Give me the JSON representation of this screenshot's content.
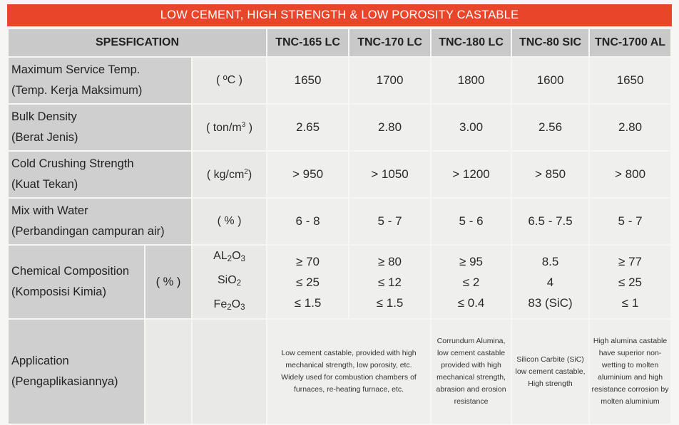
{
  "title": "LOW CEMENT, HIGH STRENGTH & LOW POROSITY CASTABLE",
  "header": {
    "spec": "SPESFICATION",
    "products": [
      "TNC-165 LC",
      "TNC-170 LC",
      "TNC-180 LC",
      "TNC-80 SIC",
      "TNC-1700 AL"
    ]
  },
  "rows": {
    "temp": {
      "label1": "Maximum Service Temp.",
      "label2": "(Temp. Kerja  Maksimum)",
      "unit": "( ºC )",
      "values": [
        "1650",
        "1700",
        "1800",
        "1600",
        "1650"
      ]
    },
    "density": {
      "label1": "Bulk Density",
      "label2": "(Berat Jenis)",
      "unit_a": "( ton/m",
      "unit_sup": "3",
      "unit_b": " )",
      "values": [
        "2.65",
        "2.80",
        "3.00",
        "2.56",
        "2.80"
      ]
    },
    "crushing": {
      "label1": "Cold Crushing Strength",
      "label2": "(Kuat Tekan)",
      "unit_a": "( kg/cm",
      "unit_sup": "2",
      "unit_b": ")",
      "values": [
        "> 950",
        "> 1050",
        "> 1200",
        "> 850",
        "> 800"
      ]
    },
    "water": {
      "label1": "Mix with Water",
      "label2": "(Perbandingan campuran air)",
      "unit": "( % )",
      "values": [
        "6 - 8",
        "5 - 7",
        "5 - 6",
        "6.5 - 7.5",
        "5 - 7"
      ]
    },
    "chemical": {
      "label1": "Chemical Composition",
      "label2": "(Komposisi Kimia)",
      "unit": "( % )",
      "compounds": [
        {
          "a": "AL",
          "s1": "2",
          "b": "O",
          "s2": "3"
        },
        {
          "a": "SiO",
          "s1": "2",
          "b": "",
          "s2": ""
        },
        {
          "a": "Fe",
          "s1": "2",
          "b": "O",
          "s2": "3"
        }
      ],
      "values": [
        [
          "≥ 70",
          "≤ 25",
          "≤ 1.5"
        ],
        [
          "≥ 80",
          "≤ 12",
          "≤ 1.5"
        ],
        [
          "≥ 95",
          "≤ 2",
          "≤ 0.4"
        ],
        [
          "8.5",
          "4",
          "83 (SiC)"
        ],
        [
          "≥ 77",
          "≤ 25",
          "≤ 1"
        ]
      ]
    },
    "application": {
      "label1": "Application",
      "label2": "(Pengaplikasiannya)",
      "texts": [
        "Low cement castable, provided with high mechanical strength, low porosity, etc. Widely used for combustion chambers of furnaces, re-heating furnace, etc.",
        "Corrundum Alumina, low cement castable provided with high mechanical strength, abrasion and erosion resistance",
        "Silicon Carbite (SiC) low cement castable, High strength",
        "High alumina castable have superior non-wetting to molten aluminium and high resistance corrosion by molten aluminium"
      ]
    }
  }
}
